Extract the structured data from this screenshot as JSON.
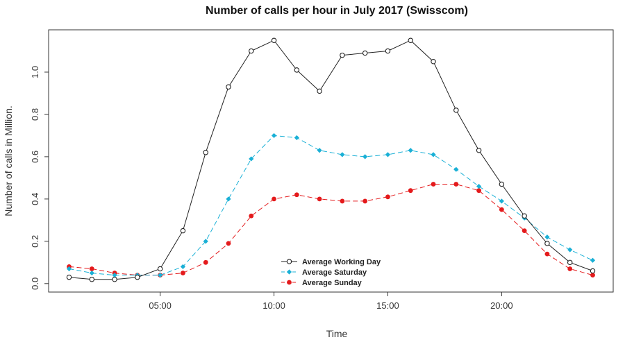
{
  "chart_data": {
    "type": "line",
    "title": "Number of calls per hour in July 2017 (Swisscom)",
    "xlabel": "Time",
    "ylabel": "Number of calls in Million.",
    "x": [
      1,
      2,
      3,
      4,
      5,
      6,
      7,
      8,
      9,
      10,
      11,
      12,
      13,
      14,
      15,
      16,
      17,
      18,
      19,
      20,
      21,
      22,
      23,
      24
    ],
    "xlim": [
      0.1,
      24.9
    ],
    "ylim": [
      -0.04,
      1.2
    ],
    "x_ticks": [
      {
        "value": 5,
        "label": "05:00"
      },
      {
        "value": 10,
        "label": "10:00"
      },
      {
        "value": 15,
        "label": "15:00"
      },
      {
        "value": 20,
        "label": "20:00"
      }
    ],
    "y_ticks": [
      {
        "value": 0.0,
        "label": "0.0"
      },
      {
        "value": 0.2,
        "label": "0.2"
      },
      {
        "value": 0.4,
        "label": "0.4"
      },
      {
        "value": 0.6,
        "label": "0.6"
      },
      {
        "value": 0.8,
        "label": "0.8"
      },
      {
        "value": 1.0,
        "label": "1.0"
      }
    ],
    "legend_position": "bottom-center",
    "series": [
      {
        "name": "Average Working Day",
        "color": "#222222",
        "marker": "open-circle",
        "dash": "solid",
        "values": [
          0.03,
          0.02,
          0.02,
          0.03,
          0.07,
          0.25,
          0.62,
          0.93,
          1.1,
          1.15,
          1.01,
          0.91,
          1.08,
          1.09,
          1.1,
          1.15,
          1.05,
          0.82,
          0.63,
          0.47,
          0.32,
          0.19,
          0.1,
          0.06
        ]
      },
      {
        "name": "Average Saturday",
        "color": "#1ab0d6",
        "marker": "filled-diamond",
        "dash": "dashed",
        "values": [
          0.07,
          0.05,
          0.04,
          0.04,
          0.04,
          0.08,
          0.2,
          0.4,
          0.59,
          0.7,
          0.69,
          0.63,
          0.61,
          0.6,
          0.61,
          0.63,
          0.61,
          0.54,
          0.46,
          0.39,
          0.31,
          0.22,
          0.16,
          0.11
        ]
      },
      {
        "name": "Average Sunday",
        "color": "#e41a1c",
        "marker": "filled-circle",
        "dash": "dashed",
        "values": [
          0.08,
          0.07,
          0.05,
          0.04,
          0.04,
          0.05,
          0.1,
          0.19,
          0.32,
          0.4,
          0.42,
          0.4,
          0.39,
          0.39,
          0.41,
          0.44,
          0.47,
          0.47,
          0.44,
          0.35,
          0.25,
          0.14,
          0.07,
          0.04
        ]
      }
    ]
  }
}
